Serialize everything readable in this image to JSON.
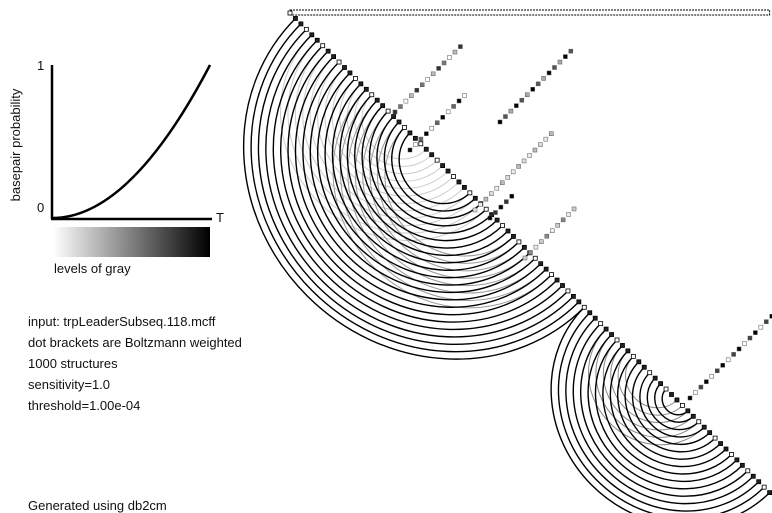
{
  "legend": {
    "y_label": "basepair probability",
    "y_max": "1",
    "y_min": "0",
    "x_label": "T",
    "gray_label": "levels of gray"
  },
  "info": [
    "input: trpLeaderSubseq.118.mcff",
    "dot brackets are Boltzmann weighted",
    "1000 structures",
    "sensitivity=1.0",
    "threshold=1.00e-04"
  ],
  "footer": "Generated using db2cm"
}
